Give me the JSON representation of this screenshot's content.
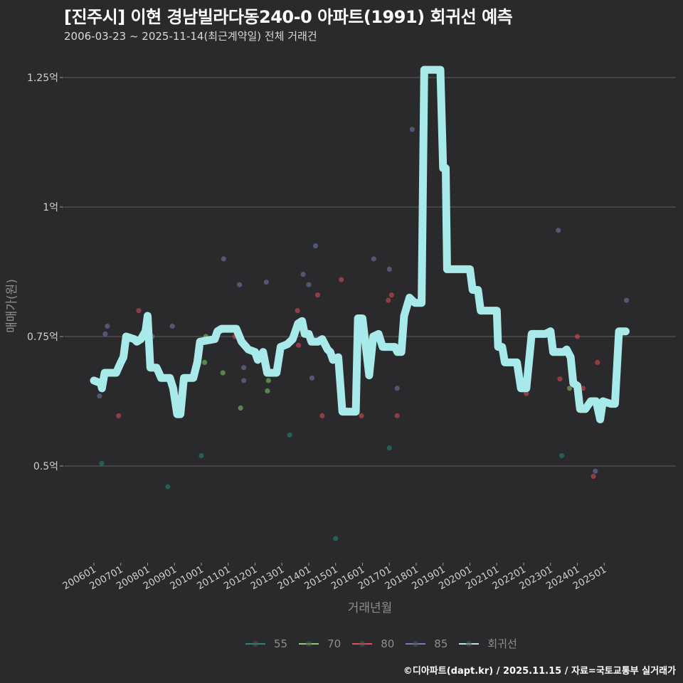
{
  "header": {
    "title": "[진주시] 이현 경남빌라다동240-0 아파트(1991) 회귀선 예측",
    "subtitle": "2006-03-23 ~ 2025-11-14(최근계약일) 전체 거래건"
  },
  "caption": "©디아파트(dapt.kr) / 2025.11.15 / 자료=국토교통부 실거래가",
  "colors": {
    "background": "#2a292b",
    "grid": "#5e5e5e",
    "regression": "#a8eaea",
    "s55": "#1f8a7c",
    "s70": "#7fd36b",
    "s80": "#e0505a",
    "s85": "#6f7fb0"
  },
  "chart_data": {
    "type": "scatter",
    "title": "[진주시] 이현 경남빌라다동240-0 아파트(1991) 회귀선 예측",
    "subtitle": "2006-03-23 ~ 2025-11-14(최근계약일) 전체 거래건",
    "xlabel": "거래년월",
    "ylabel": "매매가(원)",
    "ylim": [
      0.33,
      1.28
    ],
    "y_unit": "억",
    "yticks": [
      {
        "value": 0.5,
        "label": "0.5억"
      },
      {
        "value": 0.75,
        "label": "0.75억"
      },
      {
        "value": 1.0,
        "label": "1억"
      },
      {
        "value": 1.25,
        "label": "1.25억"
      }
    ],
    "xticks": [
      "200601",
      "200701",
      "200801",
      "200901",
      "201001",
      "201101",
      "201201",
      "201301",
      "201401",
      "201501",
      "201601",
      "201701",
      "201801",
      "201901",
      "202001",
      "202101",
      "202201",
      "202301",
      "202401",
      "202501"
    ],
    "grid": true,
    "legend_position": "bottom",
    "legend": [
      "55",
      "70",
      "80",
      "85",
      "회귀선"
    ],
    "series": [
      {
        "name": "55",
        "points": [
          [
            2006.29,
            0.505
          ],
          [
            2008.75,
            0.46
          ],
          [
            2010.0,
            0.52
          ],
          [
            2013.29,
            0.56
          ],
          [
            2015.0,
            0.36
          ],
          [
            2017.0,
            0.535
          ],
          [
            2023.42,
            0.52
          ]
        ]
      },
      {
        "name": "70",
        "points": [
          [
            2010.12,
            0.7
          ],
          [
            2010.17,
            0.75
          ],
          [
            2010.8,
            0.68
          ],
          [
            2011.46,
            0.612
          ],
          [
            2012.46,
            0.645
          ],
          [
            2012.5,
            0.665
          ],
          [
            2023.71,
            0.65
          ]
        ]
      },
      {
        "name": "80",
        "points": [
          [
            2006.92,
            0.597
          ],
          [
            2007.67,
            0.8
          ],
          [
            2008.08,
            0.7
          ],
          [
            2009.17,
            0.6
          ],
          [
            2011.25,
            0.75
          ],
          [
            2013.58,
            0.8
          ],
          [
            2013.62,
            0.733
          ],
          [
            2014.33,
            0.83
          ],
          [
            2014.5,
            0.597
          ],
          [
            2015.21,
            0.86
          ],
          [
            2015.96,
            0.597
          ],
          [
            2016.96,
            0.82
          ],
          [
            2017.08,
            0.83
          ],
          [
            2017.29,
            0.597
          ],
          [
            2022.1,
            0.64
          ],
          [
            2023.35,
            0.668
          ],
          [
            2024.0,
            0.75
          ],
          [
            2024.21,
            0.65
          ],
          [
            2024.6,
            0.48
          ],
          [
            2024.75,
            0.7
          ]
        ]
      },
      {
        "name": "85",
        "points": [
          [
            2006.21,
            0.635
          ],
          [
            2006.42,
            0.755
          ],
          [
            2006.5,
            0.77
          ],
          [
            2008.17,
            0.75
          ],
          [
            2008.92,
            0.77
          ],
          [
            2010.83,
            0.9
          ],
          [
            2011.42,
            0.85
          ],
          [
            2011.58,
            0.69
          ],
          [
            2011.58,
            0.665
          ],
          [
            2012.42,
            0.855
          ],
          [
            2013.79,
            0.87
          ],
          [
            2014.0,
            0.85
          ],
          [
            2014.12,
            0.67
          ],
          [
            2014.25,
            0.925
          ],
          [
            2016.42,
            0.9
          ],
          [
            2017.0,
            0.88
          ],
          [
            2017.29,
            0.65
          ],
          [
            2017.85,
            1.15
          ],
          [
            2023.29,
            0.955
          ],
          [
            2024.67,
            0.49
          ],
          [
            2025.83,
            0.82
          ]
        ]
      },
      {
        "name": "회귀선",
        "type": "line",
        "points": [
          [
            2006.0,
            0.665
          ],
          [
            2006.25,
            0.66
          ],
          [
            2006.3,
            0.65
          ],
          [
            2006.4,
            0.68
          ],
          [
            2006.83,
            0.68
          ],
          [
            2007.0,
            0.7
          ],
          [
            2007.1,
            0.71
          ],
          [
            2007.2,
            0.75
          ],
          [
            2007.5,
            0.745
          ],
          [
            2007.6,
            0.74
          ],
          [
            2007.75,
            0.745
          ],
          [
            2007.92,
            0.76
          ],
          [
            2008.0,
            0.79
          ],
          [
            2008.1,
            0.69
          ],
          [
            2008.33,
            0.69
          ],
          [
            2008.42,
            0.68
          ],
          [
            2008.5,
            0.67
          ],
          [
            2008.83,
            0.67
          ],
          [
            2008.95,
            0.65
          ],
          [
            2009.1,
            0.6
          ],
          [
            2009.22,
            0.6
          ],
          [
            2009.35,
            0.67
          ],
          [
            2009.7,
            0.67
          ],
          [
            2009.85,
            0.7
          ],
          [
            2009.95,
            0.74
          ],
          [
            2010.5,
            0.745
          ],
          [
            2010.6,
            0.76
          ],
          [
            2010.75,
            0.765
          ],
          [
            2011.3,
            0.765
          ],
          [
            2011.5,
            0.74
          ],
          [
            2011.75,
            0.725
          ],
          [
            2012.0,
            0.72
          ],
          [
            2012.1,
            0.705
          ],
          [
            2012.3,
            0.72
          ],
          [
            2012.45,
            0.68
          ],
          [
            2012.8,
            0.68
          ],
          [
            2012.95,
            0.73
          ],
          [
            2013.2,
            0.735
          ],
          [
            2013.4,
            0.745
          ],
          [
            2013.6,
            0.775
          ],
          [
            2013.75,
            0.78
          ],
          [
            2013.85,
            0.755
          ],
          [
            2014.0,
            0.755
          ],
          [
            2014.1,
            0.74
          ],
          [
            2014.35,
            0.74
          ],
          [
            2014.5,
            0.745
          ],
          [
            2014.7,
            0.725
          ],
          [
            2014.8,
            0.72
          ],
          [
            2014.9,
            0.705
          ],
          [
            2015.1,
            0.71
          ],
          [
            2015.25,
            0.605
          ],
          [
            2015.5,
            0.605
          ],
          [
            2015.75,
            0.605
          ],
          [
            2015.83,
            0.785
          ],
          [
            2016.0,
            0.785
          ],
          [
            2016.08,
            0.75
          ],
          [
            2016.25,
            0.675
          ],
          [
            2016.4,
            0.75
          ],
          [
            2016.6,
            0.755
          ],
          [
            2016.75,
            0.73
          ],
          [
            2017.2,
            0.73
          ],
          [
            2017.3,
            0.72
          ],
          [
            2017.45,
            0.72
          ],
          [
            2017.55,
            0.79
          ],
          [
            2017.75,
            0.825
          ],
          [
            2017.95,
            0.815
          ],
          [
            2018.2,
            0.815
          ],
          [
            2018.3,
            1.265
          ],
          [
            2018.9,
            1.265
          ],
          [
            2019.0,
            1.075
          ],
          [
            2019.1,
            1.075
          ],
          [
            2019.15,
            0.88
          ],
          [
            2019.4,
            0.88
          ],
          [
            2020.0,
            0.88
          ],
          [
            2020.1,
            0.84
          ],
          [
            2020.3,
            0.84
          ],
          [
            2020.4,
            0.8
          ],
          [
            2021.0,
            0.8
          ],
          [
            2021.05,
            0.73
          ],
          [
            2021.2,
            0.73
          ],
          [
            2021.3,
            0.7
          ],
          [
            2021.75,
            0.7
          ],
          [
            2021.9,
            0.65
          ],
          [
            2022.1,
            0.65
          ],
          [
            2022.3,
            0.755
          ],
          [
            2022.8,
            0.755
          ],
          [
            2023.0,
            0.76
          ],
          [
            2023.1,
            0.72
          ],
          [
            2023.5,
            0.72
          ],
          [
            2023.6,
            0.725
          ],
          [
            2023.75,
            0.71
          ],
          [
            2023.85,
            0.66
          ],
          [
            2024.0,
            0.655
          ],
          [
            2024.1,
            0.61
          ],
          [
            2024.3,
            0.61
          ],
          [
            2024.5,
            0.625
          ],
          [
            2024.7,
            0.625
          ],
          [
            2024.85,
            0.59
          ],
          [
            2024.95,
            0.625
          ],
          [
            2025.25,
            0.62
          ],
          [
            2025.4,
            0.62
          ],
          [
            2025.55,
            0.76
          ],
          [
            2025.8,
            0.76
          ]
        ]
      }
    ]
  },
  "legend": {
    "items": [
      {
        "label": "55",
        "color": "#1f8a7c"
      },
      {
        "label": "70",
        "color": "#7fd36b"
      },
      {
        "label": "80",
        "color": "#e0505a"
      },
      {
        "label": "85",
        "color": "#6f7fb0"
      },
      {
        "label": "회귀선",
        "color": "#a8eaea"
      }
    ]
  },
  "axes": {
    "x_title": "거래년월",
    "y_title": "매매가(원)"
  }
}
